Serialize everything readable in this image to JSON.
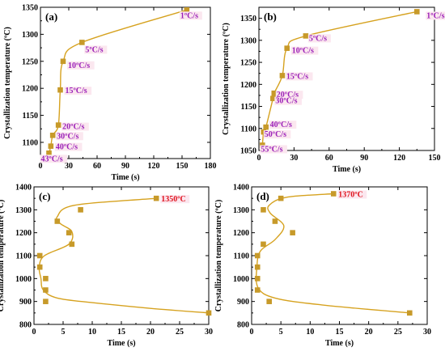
{
  "colors": {
    "marker": "#c79a2a",
    "curve": "#d6a21f",
    "rate_label": "#9b1fb8",
    "temp_label": "#e0141e",
    "label_highlight": "#fbe7ef"
  },
  "chart_data": [
    {
      "panel": "(a)",
      "type": "scatter",
      "xlabel": "Time (s)",
      "ylabel": "Crystallization temperature (ºC)",
      "xlim": [
        0,
        180
      ],
      "ylim": [
        1070,
        1350
      ],
      "xticks": [
        0,
        30,
        60,
        90,
        120,
        150,
        180
      ],
      "yticks": [
        1100,
        1150,
        1200,
        1250,
        1300,
        1350
      ],
      "points": [
        {
          "x": 155,
          "y": 1345,
          "label": "1ºC/s"
        },
        {
          "x": 44,
          "y": 1285,
          "label": "5ºC/s"
        },
        {
          "x": 24,
          "y": 1250,
          "label": "10ºC/s"
        },
        {
          "x": 21,
          "y": 1197,
          "label": "15ºC/s"
        },
        {
          "x": 19,
          "y": 1132,
          "label": "20ºC/s"
        },
        {
          "x": 13,
          "y": 1113,
          "label": "30ºC/s"
        },
        {
          "x": 11,
          "y": 1093,
          "label": "40ºC/s"
        },
        {
          "x": 9,
          "y": 1080,
          "label": "43ºC/s"
        }
      ],
      "curve": [
        [
          9,
          1080
        ],
        [
          11,
          1093
        ],
        [
          13,
          1113
        ],
        [
          19,
          1132
        ],
        [
          21,
          1197
        ],
        [
          24,
          1250
        ],
        [
          44,
          1285
        ],
        [
          155,
          1345
        ]
      ]
    },
    {
      "panel": "(b)",
      "type": "scatter",
      "xlabel": "Time (s)",
      "ylabel": "Crystallization temperature (ºC)",
      "xlim": [
        0,
        150
      ],
      "ylim": [
        1050,
        1375
      ],
      "xticks": [
        0,
        30,
        60,
        90,
        120,
        150
      ],
      "yticks": [
        1050,
        1100,
        1150,
        1200,
        1250,
        1300,
        1350
      ],
      "points": [
        {
          "x": 135,
          "y": 1365,
          "label": "1ºC/s"
        },
        {
          "x": 40,
          "y": 1310,
          "label": "5ºC/s"
        },
        {
          "x": 24,
          "y": 1282,
          "label": "10ºC/s"
        },
        {
          "x": 20,
          "y": 1220,
          "label": "15ºC/s"
        },
        {
          "x": 13,
          "y": 1180,
          "label": "20ºC/s"
        },
        {
          "x": 12,
          "y": 1168,
          "label": "30ºC/s"
        },
        {
          "x": 6,
          "y": 1103,
          "label": "40ºC/s"
        },
        {
          "x": 4,
          "y": 1092,
          "label": "50ºC/s"
        },
        {
          "x": 3,
          "y": 1062,
          "label": "55ºC/s"
        }
      ],
      "curve": [
        [
          3,
          1062
        ],
        [
          4,
          1092
        ],
        [
          6,
          1103
        ],
        [
          12,
          1168
        ],
        [
          13,
          1180
        ],
        [
          20,
          1220
        ],
        [
          24,
          1282
        ],
        [
          40,
          1310
        ],
        [
          135,
          1365
        ]
      ]
    },
    {
      "panel": "(c)",
      "type": "scatter",
      "xlabel": "Time (s)",
      "ylabel": "Crystallization temperature (ºC)",
      "xlim": [
        0,
        30
      ],
      "ylim": [
        800,
        1400
      ],
      "xticks": [
        0,
        5,
        10,
        15,
        20,
        25,
        30
      ],
      "yticks": [
        800,
        900,
        1000,
        1100,
        1200,
        1300,
        1400
      ],
      "annotation": "1350ºC",
      "points": [
        {
          "x": 21,
          "y": 1350
        },
        {
          "x": 8,
          "y": 1300
        },
        {
          "x": 4,
          "y": 1250
        },
        {
          "x": 6,
          "y": 1200
        },
        {
          "x": 6.5,
          "y": 1150
        },
        {
          "x": 1,
          "y": 1100
        },
        {
          "x": 1,
          "y": 1050
        },
        {
          "x": 2,
          "y": 1000
        },
        {
          "x": 2,
          "y": 950
        },
        {
          "x": 2,
          "y": 900
        },
        {
          "x": 30,
          "y": 850
        }
      ],
      "curve": [
        [
          21,
          1350
        ],
        [
          7,
          1320
        ],
        [
          4,
          1270
        ],
        [
          4.5,
          1240
        ],
        [
          6.5,
          1205
        ],
        [
          6,
          1150
        ],
        [
          1.8,
          1100
        ],
        [
          0.9,
          1050
        ],
        [
          1.2,
          1000
        ],
        [
          1.6,
          950
        ],
        [
          4,
          915
        ],
        [
          10,
          895
        ],
        [
          20,
          870
        ],
        [
          30,
          850
        ]
      ]
    },
    {
      "panel": "(d)",
      "type": "scatter",
      "xlabel": "Time (s)",
      "ylabel": "Crystallization temperature (ºC)",
      "xlim": [
        0,
        30
      ],
      "ylim": [
        800,
        1400
      ],
      "xticks": [
        0,
        5,
        10,
        15,
        20,
        25,
        30
      ],
      "yticks": [
        800,
        900,
        1000,
        1100,
        1200,
        1300,
        1400
      ],
      "annotation": "1370ºC",
      "points": [
        {
          "x": 14,
          "y": 1370
        },
        {
          "x": 5,
          "y": 1350
        },
        {
          "x": 2,
          "y": 1300
        },
        {
          "x": 4,
          "y": 1250
        },
        {
          "x": 7,
          "y": 1200
        },
        {
          "x": 2,
          "y": 1150
        },
        {
          "x": 1,
          "y": 1100
        },
        {
          "x": 1,
          "y": 1050
        },
        {
          "x": 1,
          "y": 1000
        },
        {
          "x": 1,
          "y": 950
        },
        {
          "x": 3,
          "y": 900
        },
        {
          "x": 27,
          "y": 850
        }
      ],
      "curve": [
        [
          14,
          1370
        ],
        [
          6,
          1355
        ],
        [
          3,
          1320
        ],
        [
          3.2,
          1285
        ],
        [
          5.5,
          1230
        ],
        [
          4,
          1170
        ],
        [
          1.5,
          1120
        ],
        [
          0.9,
          1050
        ],
        [
          1.1,
          960
        ],
        [
          4,
          915
        ],
        [
          12,
          885
        ],
        [
          27,
          850
        ]
      ]
    }
  ]
}
